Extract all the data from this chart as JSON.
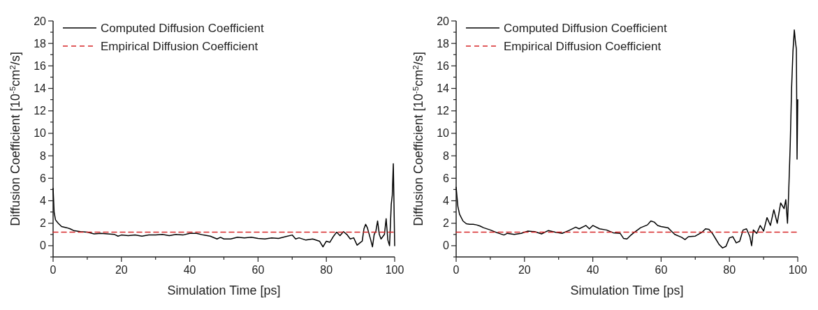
{
  "chart_data": [
    {
      "type": "line",
      "xlabel": "Simulation Time [ps]",
      "ylabel": "Diffusion Coefficient [10$^{-5}$cm$^{2}$/s]",
      "xlim": [
        0,
        100
      ],
      "ylim": [
        -1,
        20
      ],
      "xticks": [
        0,
        {
          "value": 10,
          "label": null
        },
        20,
        {
          "value": 30,
          "label": null
        },
        40,
        {
          "value": 50,
          "label": null
        },
        60,
        {
          "value": 70,
          "label": null
        },
        80,
        {
          "value": 90,
          "label": null
        },
        100
      ],
      "yticks": [
        {
          "value": -1,
          "label": null
        },
        0,
        {
          "value": 1,
          "label": null
        },
        2,
        {
          "value": 3,
          "label": null
        },
        4,
        {
          "value": 5,
          "label": null
        },
        6,
        {
          "value": 7,
          "label": null
        },
        8,
        {
          "value": 9,
          "label": null
        },
        10,
        {
          "value": 11,
          "label": null
        },
        12,
        {
          "value": 13,
          "label": null
        },
        14,
        {
          "value": 15,
          "label": null
        },
        16,
        {
          "value": 17,
          "label": null
        },
        18,
        {
          "value": 19,
          "label": null
        },
        20
      ],
      "legend": "top left",
      "grid": false,
      "series": [
        {
          "name": "Computed Diffusion Coefficient",
          "color": "#000000",
          "line_style": "solid",
          "x": [
            0,
            0.3,
            0.7,
            1.5,
            2.5,
            4,
            5,
            6,
            7,
            8,
            10,
            12,
            14,
            16,
            18,
            19,
            20,
            22,
            24,
            26,
            28,
            30,
            32,
            34,
            36,
            38,
            40,
            42,
            44,
            46,
            48,
            49,
            50,
            52,
            54,
            56,
            58,
            60,
            62,
            64,
            66,
            68,
            70,
            71,
            72,
            74,
            76,
            78,
            79,
            80,
            81,
            82,
            83,
            84,
            85,
            86,
            87,
            88,
            89,
            90,
            90.5,
            91,
            91.5,
            92,
            93,
            93.5,
            94,
            94.5,
            95,
            95.5,
            96,
            97,
            97.5,
            98,
            98.5,
            99,
            99.3,
            99.6,
            100
          ],
          "values": [
            5.1,
            3.0,
            2.3,
            2.0,
            1.7,
            1.6,
            1.5,
            1.35,
            1.3,
            1.25,
            1.2,
            1.05,
            1.1,
            1.05,
            1.0,
            0.85,
            0.95,
            0.9,
            0.95,
            0.85,
            0.95,
            0.95,
            1.0,
            0.9,
            1.0,
            0.95,
            1.1,
            1.1,
            0.95,
            0.85,
            0.6,
            0.75,
            0.6,
            0.6,
            0.75,
            0.7,
            0.75,
            0.65,
            0.6,
            0.7,
            0.65,
            0.8,
            0.95,
            0.6,
            0.7,
            0.5,
            0.6,
            0.4,
            -0.1,
            0.4,
            0.3,
            0.8,
            1.2,
            0.9,
            1.25,
            1.0,
            0.6,
            0.7,
            0.05,
            0.3,
            0.4,
            1.5,
            1.9,
            1.6,
            0.5,
            -0.1,
            1.0,
            1.3,
            2.2,
            1.0,
            0.6,
            1.0,
            2.4,
            0.5,
            0.0,
            3.7,
            4.5,
            7.3,
            0.0
          ]
        },
        {
          "name": "Empirical Diffusion Coefficient",
          "color": "#d62728",
          "line_style": "dashed",
          "x": [
            0,
            100
          ],
          "values": [
            1.2,
            1.2
          ]
        }
      ]
    },
    {
      "type": "line",
      "xlabel": "Simulation Time [ps]",
      "ylabel": "Diffusion Coefficient [10$^{-5}$cm$^{2}$/s]",
      "xlim": [
        0,
        100
      ],
      "ylim": [
        -1,
        20
      ],
      "xticks": [
        0,
        {
          "value": 10,
          "label": null
        },
        20,
        {
          "value": 30,
          "label": null
        },
        40,
        {
          "value": 50,
          "label": null
        },
        60,
        {
          "value": 70,
          "label": null
        },
        80,
        {
          "value": 90,
          "label": null
        },
        100
      ],
      "yticks": [
        {
          "value": -1,
          "label": null
        },
        0,
        {
          "value": 1,
          "label": null
        },
        2,
        {
          "value": 3,
          "label": null
        },
        4,
        {
          "value": 5,
          "label": null
        },
        6,
        {
          "value": 7,
          "label": null
        },
        8,
        {
          "value": 9,
          "label": null
        },
        10,
        {
          "value": 11,
          "label": null
        },
        12,
        {
          "value": 13,
          "label": null
        },
        14,
        {
          "value": 15,
          "label": null
        },
        16,
        {
          "value": 17,
          "label": null
        },
        18,
        {
          "value": 19,
          "label": null
        },
        20
      ],
      "legend": "top left",
      "grid": false,
      "series": [
        {
          "name": "Computed Diffusion Coefficient",
          "color": "#000000",
          "line_style": "solid",
          "x": [
            0,
            0.5,
            1,
            2,
            3,
            4,
            5,
            6,
            7,
            8,
            10,
            12,
            14,
            15,
            17,
            19,
            21,
            23,
            25,
            27,
            29,
            31,
            33,
            35,
            36,
            38,
            39,
            40,
            42,
            44,
            46,
            48,
            49,
            50,
            51,
            52,
            54,
            56,
            57,
            58,
            59,
            60,
            62,
            63,
            64,
            66,
            67,
            68,
            70,
            72,
            73,
            74,
            75,
            76,
            77,
            78,
            79,
            80,
            81,
            82,
            83,
            84,
            85,
            86,
            86.5,
            87,
            88,
            89,
            90,
            91,
            92,
            93,
            94,
            95,
            96,
            96.5,
            97,
            97.3,
            97.8,
            98.2,
            98.6,
            99,
            99.3,
            99.6,
            99.8,
            100
          ],
          "values": [
            5.2,
            3.5,
            2.8,
            2.2,
            1.95,
            1.9,
            1.9,
            1.85,
            1.75,
            1.6,
            1.4,
            1.15,
            0.95,
            1.1,
            1.0,
            1.1,
            1.3,
            1.25,
            1.05,
            1.35,
            1.2,
            1.1,
            1.35,
            1.65,
            1.5,
            1.8,
            1.5,
            1.8,
            1.5,
            1.4,
            1.15,
            1.1,
            0.65,
            0.6,
            0.9,
            1.15,
            1.6,
            1.85,
            2.2,
            2.1,
            1.8,
            1.7,
            1.6,
            1.3,
            1.0,
            0.75,
            0.55,
            0.8,
            0.85,
            1.2,
            1.5,
            1.45,
            1.1,
            0.6,
            0.1,
            -0.2,
            -0.05,
            0.7,
            0.8,
            0.25,
            0.4,
            1.4,
            1.5,
            0.8,
            0.0,
            1.4,
            1.1,
            1.8,
            1.3,
            2.5,
            1.8,
            3.2,
            2.0,
            3.8,
            3.3,
            4.1,
            2.0,
            4.3,
            9,
            14,
            17.3,
            19.2,
            18.2,
            17.5,
            7.7,
            13.0
          ]
        },
        {
          "name": "Empirical Diffusion Coefficient",
          "color": "#d62728",
          "line_style": "dashed",
          "x": [
            0,
            100
          ],
          "values": [
            1.2,
            1.2
          ]
        }
      ]
    }
  ]
}
